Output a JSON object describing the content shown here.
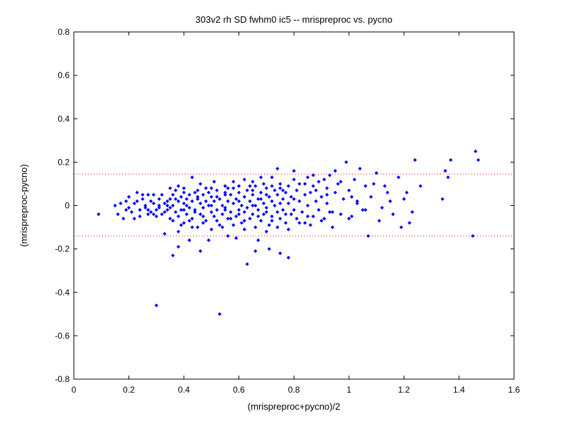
{
  "chart_data": {
    "type": "scatter",
    "title": "303v2 rh SD fwhm0 ic5 -- mrispreproc vs. pycno",
    "xlabel": "(mrispreproc+pycno)/2",
    "ylabel": "(mrispreproc-pycno)",
    "xlim": [
      0,
      1.6
    ],
    "ylim": [
      -0.8,
      0.8
    ],
    "xticks": [
      0,
      0.2,
      0.4,
      0.6,
      0.8,
      1,
      1.2,
      1.4,
      1.6
    ],
    "xtick_labels": [
      "0",
      "0.2",
      "0.4",
      "0.6",
      "0.8",
      "1",
      "1.2",
      "1.4",
      "1.6"
    ],
    "yticks": [
      -0.8,
      -0.6,
      -0.4,
      -0.2,
      0,
      0.2,
      0.4,
      0.6,
      0.8
    ],
    "ytick_labels": [
      "-0.8",
      "-0.6",
      "-0.4",
      "-0.2",
      "0",
      "0.2",
      "0.4",
      "0.6",
      "0.8"
    ],
    "grid": false,
    "reference_lines": [
      {
        "y": 0.145,
        "color": "#ff0000",
        "style": "dotted"
      },
      {
        "y": -0.14,
        "color": "#ff0000",
        "style": "dotted"
      }
    ],
    "marker_color": "#0000ff",
    "series": [
      {
        "points": [
          [
            0.09,
            -0.04
          ],
          [
            0.15,
            0.0
          ],
          [
            0.16,
            -0.04
          ],
          [
            0.17,
            0.01
          ],
          [
            0.18,
            -0.06
          ],
          [
            0.19,
            0.02
          ],
          [
            0.19,
            -0.02
          ],
          [
            0.2,
            0.04
          ],
          [
            0.2,
            -0.01
          ],
          [
            0.21,
            -0.03
          ],
          [
            0.22,
            0.01
          ],
          [
            0.22,
            -0.06
          ],
          [
            0.23,
            0.06
          ],
          [
            0.23,
            0.02
          ],
          [
            0.24,
            -0.02
          ],
          [
            0.24,
            -0.05
          ],
          [
            0.25,
            0.03
          ],
          [
            0.25,
            0.05
          ],
          [
            0.26,
            -0.01
          ],
          [
            0.26,
            0.0
          ],
          [
            0.27,
            0.05
          ],
          [
            0.27,
            -0.04
          ],
          [
            0.28,
            0.02
          ],
          [
            0.28,
            -0.03
          ],
          [
            0.29,
            0.05
          ],
          [
            0.29,
            0.01
          ],
          [
            0.3,
            -0.02
          ],
          [
            0.3,
            -0.05
          ],
          [
            0.31,
            0.03
          ],
          [
            0.31,
            -0.01
          ],
          [
            0.32,
            0.05
          ],
          [
            0.32,
            -0.04
          ],
          [
            0.33,
            0.01
          ],
          [
            0.33,
            -0.13
          ],
          [
            0.34,
            0.0
          ],
          [
            0.34,
            -0.02
          ],
          [
            0.35,
            0.03
          ],
          [
            0.35,
            -0.06
          ],
          [
            0.36,
            0.05
          ],
          [
            0.36,
            0.0
          ],
          [
            0.37,
            -0.03
          ],
          [
            0.37,
            0.07
          ],
          [
            0.38,
            0.02
          ],
          [
            0.38,
            -0.05
          ],
          [
            0.38,
            -0.12
          ],
          [
            0.39,
            0.04
          ],
          [
            0.39,
            -0.02
          ],
          [
            0.4,
            0.01
          ],
          [
            0.4,
            -0.08
          ],
          [
            0.4,
            0.08
          ],
          [
            0.41,
            0.03
          ],
          [
            0.41,
            -0.04
          ],
          [
            0.42,
            0.05
          ],
          [
            0.42,
            -0.01
          ],
          [
            0.43,
            0.02
          ],
          [
            0.43,
            -0.06
          ],
          [
            0.44,
            0.06
          ],
          [
            0.44,
            -0.02
          ],
          [
            0.45,
            0.03
          ],
          [
            0.45,
            -0.1
          ],
          [
            0.46,
            0.01
          ],
          [
            0.46,
            -0.04
          ],
          [
            0.47,
            0.05
          ],
          [
            0.47,
            -0.01
          ],
          [
            0.48,
            0.02
          ],
          [
            0.48,
            -0.07
          ],
          [
            0.49,
            0.06
          ],
          [
            0.49,
            0.0
          ],
          [
            0.5,
            -0.03
          ],
          [
            0.5,
            0.04
          ],
          [
            0.51,
            0.02
          ],
          [
            0.51,
            -0.05
          ],
          [
            0.52,
            0.07
          ],
          [
            0.52,
            -0.02
          ],
          [
            0.53,
            0.03
          ],
          [
            0.53,
            -0.09
          ],
          [
            0.54,
            0.0
          ],
          [
            0.54,
            -0.04
          ],
          [
            0.55,
            0.06
          ],
          [
            0.55,
            -0.01
          ],
          [
            0.56,
            0.02
          ],
          [
            0.56,
            -0.06
          ],
          [
            0.57,
            0.05
          ],
          [
            0.57,
            -0.03
          ],
          [
            0.58,
            0.08
          ],
          [
            0.58,
            0.01
          ],
          [
            0.59,
            -0.05
          ],
          [
            0.59,
            0.03
          ],
          [
            0.6,
            -0.02
          ],
          [
            0.6,
            0.06
          ],
          [
            0.61,
            0.0
          ],
          [
            0.61,
            -0.08
          ],
          [
            0.62,
            0.04
          ],
          [
            0.62,
            -0.03
          ],
          [
            0.63,
            0.07
          ],
          [
            0.63,
            -0.01
          ],
          [
            0.64,
            0.02
          ],
          [
            0.64,
            -0.06
          ],
          [
            0.65,
            0.05
          ],
          [
            0.65,
            -0.04
          ],
          [
            0.66,
            0.09
          ],
          [
            0.66,
            0.0
          ],
          [
            0.67,
            -0.02
          ],
          [
            0.67,
            0.03
          ],
          [
            0.68,
            -0.07
          ],
          [
            0.68,
            0.06
          ],
          [
            0.69,
            0.01
          ],
          [
            0.69,
            -0.04
          ],
          [
            0.7,
            0.08
          ],
          [
            0.7,
            -0.01
          ],
          [
            0.71,
            0.04
          ],
          [
            0.71,
            -0.09
          ],
          [
            0.72,
            0.02
          ],
          [
            0.72,
            -0.05
          ],
          [
            0.73,
            0.07
          ],
          [
            0.73,
            0.0
          ],
          [
            0.74,
            -0.03
          ],
          [
            0.74,
            0.05
          ],
          [
            0.75,
            0.1
          ],
          [
            0.75,
            -0.06
          ],
          [
            0.76,
            0.03
          ],
          [
            0.76,
            -0.02
          ],
          [
            0.77,
            0.06
          ],
          [
            0.77,
            -0.08
          ],
          [
            0.78,
            0.01
          ],
          [
            0.78,
            0.09
          ],
          [
            0.79,
            -0.04
          ],
          [
            0.79,
            0.04
          ],
          [
            0.8,
            0.12
          ],
          [
            0.8,
            -0.02
          ],
          [
            0.81,
            0.07
          ],
          [
            0.81,
            -0.06
          ],
          [
            0.82,
            0.02
          ],
          [
            0.82,
            0.1
          ],
          [
            0.83,
            -0.03
          ],
          [
            0.84,
            0.05
          ],
          [
            0.84,
            -0.08
          ],
          [
            0.85,
            0.13
          ],
          [
            0.85,
            0.0
          ],
          [
            0.86,
            0.06
          ],
          [
            0.87,
            -0.05
          ],
          [
            0.87,
            0.09
          ],
          [
            0.88,
            0.02
          ],
          [
            0.89,
            -0.02
          ],
          [
            0.89,
            0.11
          ],
          [
            0.9,
            0.04
          ],
          [
            0.91,
            -0.06
          ],
          [
            0.92,
            0.08
          ],
          [
            0.92,
            0.01
          ],
          [
            0.93,
            0.14
          ],
          [
            0.94,
            -0.03
          ],
          [
            0.95,
            0.06
          ],
          [
            0.96,
            0.1
          ],
          [
            0.97,
            -0.04
          ],
          [
            0.98,
            0.03
          ],
          [
            0.99,
            0.2
          ],
          [
            1.0,
            0.07
          ],
          [
            1.01,
            -0.05
          ],
          [
            1.02,
            0.12
          ],
          [
            1.03,
            0.02
          ],
          [
            1.04,
            0.17
          ],
          [
            1.05,
            -0.02
          ],
          [
            1.06,
            0.09
          ],
          [
            1.07,
            -0.14
          ],
          [
            1.08,
            0.04
          ],
          [
            1.1,
            0.15
          ],
          [
            1.12,
            -0.01
          ],
          [
            1.14,
            0.06
          ],
          [
            1.16,
            -0.04
          ],
          [
            1.18,
            0.13
          ],
          [
            1.2,
            0.03
          ],
          [
            1.22,
            -0.08
          ],
          [
            1.24,
            0.21
          ],
          [
            1.26,
            0.09
          ],
          [
            1.35,
            0.16
          ],
          [
            1.36,
            0.13
          ],
          [
            1.37,
            0.21
          ],
          [
            1.46,
            0.25
          ],
          [
            1.47,
            0.21
          ],
          [
            1.45,
            -0.14
          ],
          [
            0.36,
            -0.23
          ],
          [
            0.38,
            -0.19
          ],
          [
            0.42,
            -0.16
          ],
          [
            0.46,
            -0.21
          ],
          [
            0.49,
            -0.16
          ],
          [
            0.56,
            -0.14
          ],
          [
            0.59,
            -0.15
          ],
          [
            0.63,
            -0.27
          ],
          [
            0.67,
            -0.16
          ],
          [
            0.71,
            -0.2
          ],
          [
            0.75,
            -0.22
          ],
          [
            0.78,
            -0.24
          ],
          [
            0.66,
            -0.21
          ],
          [
            0.3,
            -0.46
          ],
          [
            0.53,
            -0.5
          ],
          [
            0.43,
            0.13
          ],
          [
            0.68,
            0.13
          ],
          [
            0.74,
            0.17
          ],
          [
            0.58,
            0.11
          ],
          [
            0.38,
            0.09
          ],
          [
            0.62,
            0.12
          ],
          [
            0.69,
            0.1
          ],
          [
            0.55,
            0.09
          ],
          [
            0.46,
            0.1
          ],
          [
            0.51,
            0.11
          ],
          [
            0.65,
            0.11
          ],
          [
            0.72,
            0.13
          ],
          [
            0.8,
            0.16
          ],
          [
            0.87,
            0.14
          ],
          [
            0.91,
            0.12
          ],
          [
            0.95,
            0.16
          ],
          [
            0.34,
            0.02
          ],
          [
            0.36,
            -0.07
          ],
          [
            0.37,
            0.03
          ],
          [
            0.39,
            -0.09
          ],
          [
            0.41,
            0.0
          ],
          [
            0.43,
            -0.1
          ],
          [
            0.45,
            0.04
          ],
          [
            0.47,
            -0.08
          ],
          [
            0.48,
            0.08
          ],
          [
            0.5,
            -0.11
          ],
          [
            0.52,
            0.04
          ],
          [
            0.54,
            -0.1
          ],
          [
            0.56,
            0.08
          ],
          [
            0.58,
            -0.09
          ],
          [
            0.6,
            0.02
          ],
          [
            0.62,
            -0.11
          ],
          [
            0.64,
            0.09
          ],
          [
            0.66,
            -0.1
          ],
          [
            0.68,
            0.03
          ],
          [
            0.7,
            -0.12
          ],
          [
            0.72,
            0.09
          ],
          [
            0.74,
            -0.1
          ],
          [
            0.76,
            0.07
          ],
          [
            0.78,
            -0.11
          ],
          [
            0.8,
            0.03
          ],
          [
            0.82,
            -0.08
          ],
          [
            0.84,
            0.1
          ],
          [
            0.86,
            -0.09
          ],
          [
            0.88,
            0.07
          ],
          [
            0.9,
            -0.07
          ],
          [
            0.92,
            0.05
          ],
          [
            0.94,
            -0.1
          ],
          [
            0.97,
            0.11
          ],
          [
            1.0,
            -0.06
          ],
          [
            1.03,
            0.01
          ],
          [
            1.06,
            -0.02
          ],
          [
            1.09,
            0.1
          ],
          [
            1.11,
            -0.07
          ],
          [
            1.15,
            0.02
          ],
          [
            1.19,
            -0.1
          ],
          [
            1.21,
            0.06
          ],
          [
            1.23,
            -0.03
          ],
          [
            1.34,
            0.03
          ],
          [
            0.27,
            -0.02
          ],
          [
            0.29,
            -0.04
          ],
          [
            0.31,
            0.0
          ],
          [
            0.33,
            -0.03
          ],
          [
            0.35,
            -0.01
          ],
          [
            0.4,
            -0.02
          ],
          [
            0.44,
            -0.03
          ],
          [
            0.5,
            0.0
          ],
          [
            0.55,
            -0.02
          ],
          [
            0.6,
            -0.04
          ],
          [
            0.65,
            0.0
          ],
          [
            0.7,
            -0.03
          ],
          [
            0.75,
            0.01
          ],
          [
            0.35,
            0.08
          ],
          [
            0.4,
            0.06
          ],
          [
            0.45,
            0.07
          ],
          [
            0.5,
            0.08
          ],
          [
            0.55,
            0.05
          ],
          [
            0.6,
            0.09
          ],
          [
            0.65,
            0.07
          ],
          [
            0.7,
            0.05
          ],
          [
            0.75,
            0.08
          ],
          [
            0.42,
            -0.07
          ],
          [
            0.47,
            -0.05
          ],
          [
            0.52,
            -0.07
          ],
          [
            0.57,
            -0.06
          ],
          [
            0.62,
            -0.07
          ],
          [
            0.67,
            -0.05
          ],
          [
            0.72,
            -0.07
          ],
          [
            0.77,
            -0.04
          ],
          [
            0.85,
            -0.05
          ],
          [
            0.93,
            -0.03
          ],
          [
            1.01,
            0.04
          ],
          [
            1.13,
            0.09
          ]
        ]
      }
    ]
  }
}
